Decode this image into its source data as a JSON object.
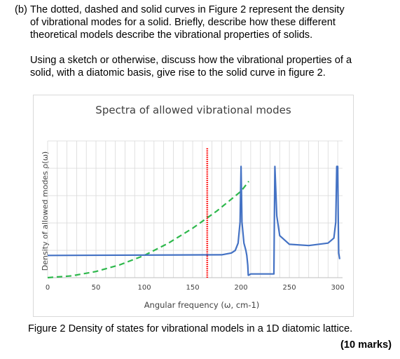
{
  "question": {
    "label": "(b)",
    "line1": "The dotted, dashed and solid curves in Figure 2 represent the density",
    "line2": "of vibrational modes for a solid. Briefly, describe how these different",
    "line3": "theoretical models describe the vibrational properties of solids.",
    "line4": "Using a sketch or otherwise, discuss how the vibrational properties of a",
    "line5": "solid, with a diatomic basis, give rise to the solid curve in figure 2."
  },
  "figure": {
    "caption": "Figure 2 Density of states for vibrational models in a 1D diatomic lattice.",
    "marks": "(10 marks)"
  },
  "chart_data": {
    "type": "line",
    "title": "Spectra of allowed vibrational modes",
    "xlabel": "Angular frequency (ω, cm-1)",
    "ylabel": "Density of allowed modes ρ(ω)",
    "xlim": [
      0,
      305
    ],
    "x_ticks": [
      0,
      50,
      100,
      150,
      200,
      250,
      300
    ],
    "grid": true,
    "colors": {
      "solid": "#4472c4",
      "dashed": "#2eb84c",
      "dotted": "#ff0000",
      "grid": "#d9d9d9"
    },
    "series": [
      {
        "style": "dashed",
        "x": [
          0,
          25,
          50,
          75,
          100,
          125,
          150,
          175,
          200,
          208
        ],
        "y": [
          0,
          0.015,
          0.05,
          0.105,
          0.18,
          0.28,
          0.4,
          0.54,
          0.7,
          0.78
        ]
      },
      {
        "style": "dotted",
        "x": [
          165,
          165
        ],
        "y": [
          0,
          1.05
        ]
      },
      {
        "style": "solid",
        "x": [
          0,
          180,
          190,
          194,
          197,
          199,
          200,
          201,
          203,
          205,
          206,
          207,
          207.5,
          208,
          210,
          215,
          220,
          225,
          230,
          233,
          234,
          234.5,
          235,
          237,
          240,
          250,
          270,
          290,
          296,
          298,
          299,
          300,
          300.5,
          301,
          302
        ],
        "y": [
          0.18,
          0.185,
          0.2,
          0.22,
          0.28,
          0.45,
          0.9,
          0.45,
          0.28,
          0.22,
          0.18,
          0.1,
          0.02,
          0.02,
          0.03,
          0.03,
          0.03,
          0.03,
          0.03,
          0.03,
          0.03,
          0.5,
          0.9,
          0.5,
          0.34,
          0.27,
          0.26,
          0.28,
          0.32,
          0.45,
          0.9,
          0.9,
          0.5,
          0.2,
          0.15
        ]
      }
    ]
  }
}
